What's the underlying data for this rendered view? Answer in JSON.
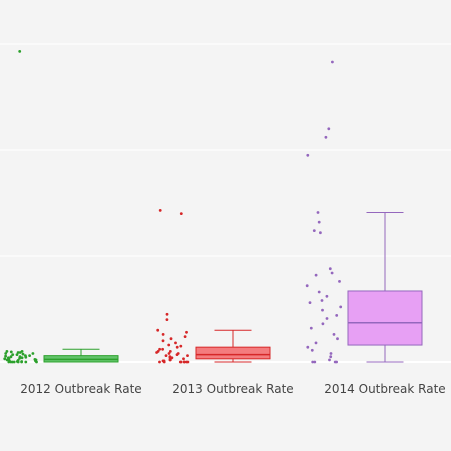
{
  "chart_data": {
    "type": "box",
    "categories": [
      "2012 Outbreak Rate",
      "2013 Outbreak Rate",
      "2014 Outbreak Rate"
    ],
    "title": "",
    "xlabel": "",
    "ylabel": "",
    "ylim": [
      0,
      300
    ],
    "y_gridlines": [
      0,
      100,
      200,
      300
    ],
    "grid": true,
    "legend": "none",
    "series": [
      {
        "category": "2012 Outbreak Rate",
        "color": "#2ca02c",
        "fill": "#62c46a",
        "box": {
          "min": 0,
          "q1": 0,
          "median": 2.5,
          "q3": 6,
          "max": 12
        },
        "points": [
          293,
          10,
          10,
          9.5,
          9,
          9,
          8,
          8,
          7.5,
          7,
          7,
          6,
          6,
          5.5,
          5,
          5,
          4.5,
          4,
          4,
          3.5,
          3,
          3,
          2.5,
          2,
          2,
          1.5,
          1,
          1,
          0.5,
          0.5,
          0,
          0,
          0,
          0,
          0,
          0,
          0,
          0
        ]
      },
      {
        "category": "2013 Outbreak Rate",
        "color": "#d62728",
        "fill": "#f47c7e",
        "box": {
          "min": 0,
          "q1": 3,
          "median": 7,
          "q3": 14,
          "max": 30
        },
        "points": [
          143,
          140,
          45,
          40,
          30,
          28,
          26,
          24,
          22,
          20,
          18,
          16,
          15,
          14,
          12,
          12,
          10,
          10,
          9,
          8,
          8,
          7,
          6,
          6,
          5,
          4,
          4,
          3,
          2,
          2,
          1,
          1,
          0,
          0,
          0,
          0,
          0,
          0,
          0,
          0
        ]
      },
      {
        "category": "2014 Outbreak Rate",
        "color": "#9467bd",
        "fill": "#e7a0f4",
        "box": {
          "min": 0,
          "q1": 16,
          "median": 37,
          "q3": 67,
          "max": 141
        },
        "points": [
          283,
          220,
          212,
          195,
          141,
          132,
          124,
          122,
          88,
          84,
          82,
          76,
          72,
          66,
          62,
          58,
          56,
          52,
          49,
          44,
          41,
          36,
          32,
          26,
          22,
          18,
          14,
          11,
          8,
          5,
          2,
          0,
          0,
          0,
          0
        ]
      }
    ]
  }
}
